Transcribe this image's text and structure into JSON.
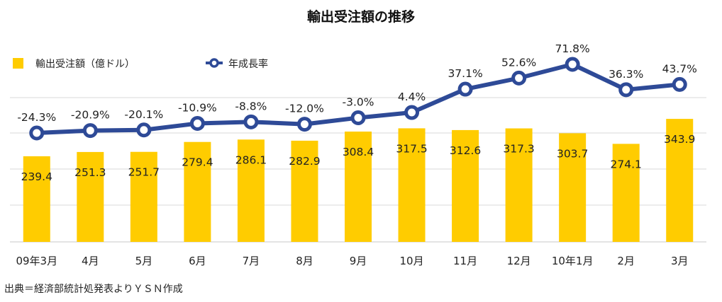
{
  "chart_data": {
    "type": "bar+line",
    "title": "輸出受注額の推移",
    "categories": [
      "09年3月",
      "4月",
      "5月",
      "6月",
      "7月",
      "8月",
      "9月",
      "10月",
      "11月",
      "12月",
      "10年1月",
      "2月",
      "3月"
    ],
    "series": [
      {
        "name": "輸出受注額（億ドル）",
        "type": "bar",
        "color": "#FFCC00",
        "values": [
          239.4,
          251.3,
          251.7,
          279.4,
          286.1,
          282.9,
          308.4,
          317.5,
          312.6,
          317.3,
          303.7,
          274.1,
          343.9
        ],
        "labels": [
          "239.4",
          "251.3",
          "251.7",
          "279.4",
          "286.1",
          "282.9",
          "308.4",
          "317.5",
          "312.6",
          "317.3",
          "303.7",
          "274.1",
          "343.9"
        ]
      },
      {
        "name": "年成長率",
        "type": "line",
        "color": "#2E4A97",
        "values": [
          -24.3,
          -20.9,
          -20.1,
          -10.9,
          -8.8,
          -12.0,
          -3.0,
          4.4,
          37.1,
          52.6,
          71.8,
          36.3,
          43.7
        ],
        "labels": [
          "-24.3%",
          "-20.9%",
          "-20.1%",
          "-10.9%",
          "-8.8%",
          "-12.0%",
          "-3.0%",
          "4.4%",
          "37.1%",
          "52.6%",
          "71.8%",
          "36.3%",
          "43.7%"
        ]
      }
    ],
    "legend_position": "top-left",
    "grid": true,
    "source": "出典＝経済部統計処発表よりＹＳＮ作成"
  }
}
